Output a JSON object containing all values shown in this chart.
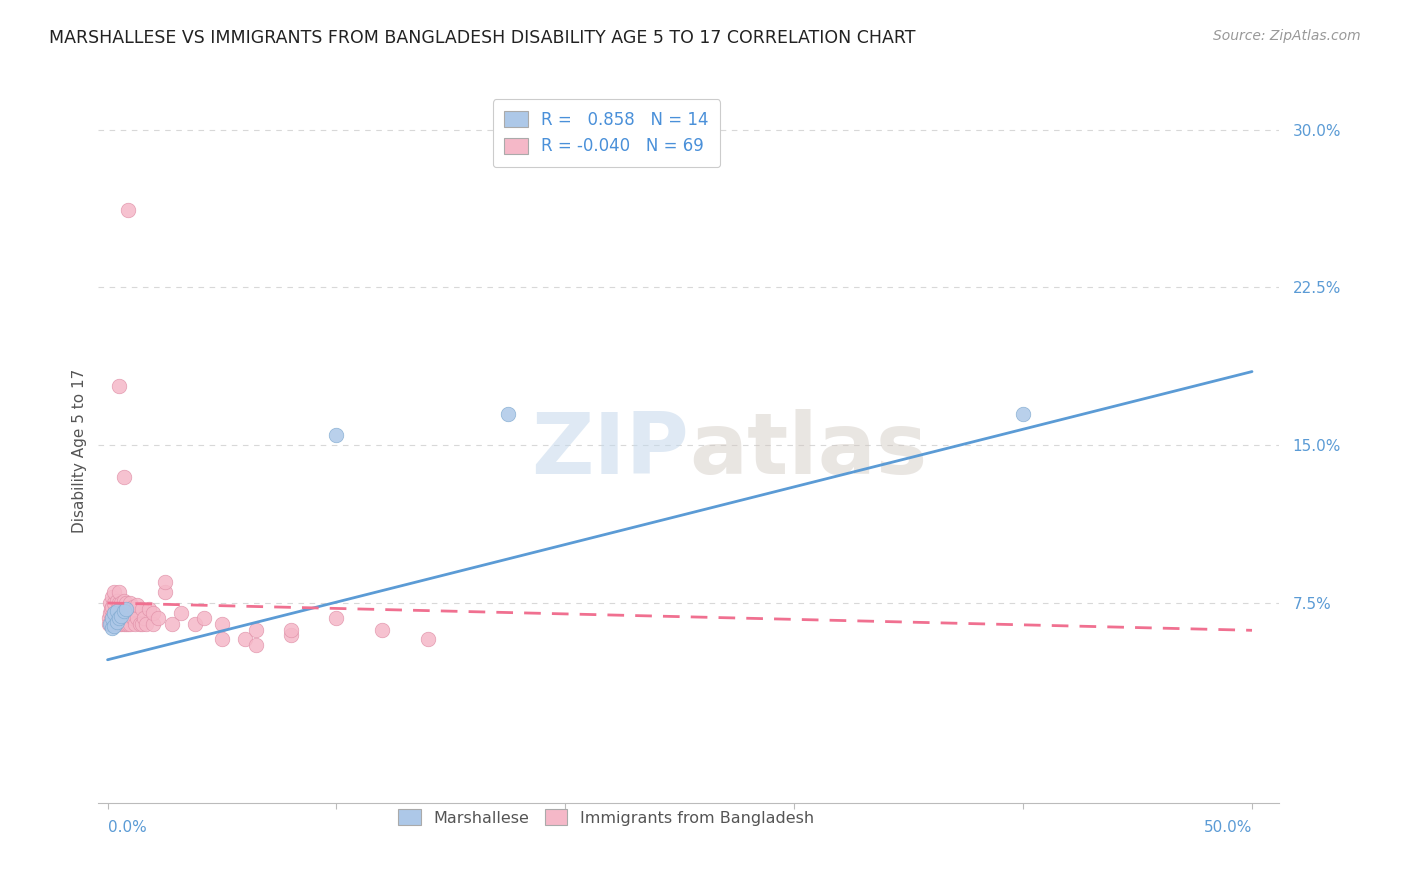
{
  "title": "MARSHALLESE VS IMMIGRANTS FROM BANGLADESH DISABILITY AGE 5 TO 17 CORRELATION CHART",
  "source": "Source: ZipAtlas.com",
  "ylabel": "Disability Age 5 to 17",
  "marshallese_color": "#adc8e8",
  "bangladesh_color": "#f5b8c8",
  "marshallese_line_color": "#5b9bd5",
  "bangladesh_line_color": "#f07090",
  "grid_color": "#d8d8d8",
  "background_color": "#ffffff",
  "watermark": "ZIPatlas",
  "xlim": [
    0.0,
    0.5
  ],
  "ylim": [
    0.0,
    0.315
  ],
  "ytick_vals": [
    0.075,
    0.15,
    0.225,
    0.3
  ],
  "ytick_labels": [
    "7.5%",
    "15.0%",
    "22.5%",
    "30.0%"
  ],
  "marsh_line_x0": 0.0,
  "marsh_line_y0": 0.048,
  "marsh_line_x1": 0.5,
  "marsh_line_y1": 0.185,
  "bang_line_x0": 0.0,
  "bang_line_y0": 0.075,
  "bang_line_x1": 0.5,
  "bang_line_y1": 0.062,
  "marsh_scatter_x": [
    0.001,
    0.002,
    0.002,
    0.003,
    0.003,
    0.004,
    0.004,
    0.005,
    0.006,
    0.007,
    0.008,
    0.1,
    0.175,
    0.4
  ],
  "marsh_scatter_y": [
    0.065,
    0.063,
    0.068,
    0.064,
    0.07,
    0.066,
    0.071,
    0.068,
    0.069,
    0.071,
    0.072,
    0.155,
    0.165,
    0.165
  ],
  "bang_scatter_x": [
    0.0005,
    0.0008,
    0.001,
    0.001,
    0.0015,
    0.0015,
    0.002,
    0.002,
    0.002,
    0.0025,
    0.003,
    0.003,
    0.003,
    0.0035,
    0.004,
    0.004,
    0.004,
    0.005,
    0.005,
    0.005,
    0.005,
    0.006,
    0.006,
    0.006,
    0.007,
    0.007,
    0.007,
    0.008,
    0.008,
    0.008,
    0.009,
    0.009,
    0.01,
    0.01,
    0.01,
    0.011,
    0.011,
    0.012,
    0.012,
    0.013,
    0.013,
    0.014,
    0.015,
    0.015,
    0.016,
    0.017,
    0.018,
    0.02,
    0.02,
    0.022,
    0.025,
    0.028,
    0.032,
    0.038,
    0.042,
    0.05,
    0.06,
    0.065,
    0.08,
    0.1,
    0.12,
    0.14,
    0.009,
    0.005,
    0.007,
    0.025,
    0.05,
    0.065,
    0.08
  ],
  "bang_scatter_y": [
    0.068,
    0.065,
    0.07,
    0.075,
    0.065,
    0.072,
    0.068,
    0.073,
    0.078,
    0.065,
    0.07,
    0.075,
    0.08,
    0.068,
    0.065,
    0.071,
    0.076,
    0.065,
    0.07,
    0.075,
    0.08,
    0.065,
    0.07,
    0.075,
    0.065,
    0.07,
    0.076,
    0.065,
    0.07,
    0.075,
    0.065,
    0.071,
    0.065,
    0.07,
    0.075,
    0.068,
    0.073,
    0.065,
    0.072,
    0.068,
    0.074,
    0.065,
    0.065,
    0.072,
    0.068,
    0.065,
    0.072,
    0.065,
    0.07,
    0.068,
    0.08,
    0.065,
    0.07,
    0.065,
    0.068,
    0.065,
    0.058,
    0.062,
    0.06,
    0.068,
    0.062,
    0.058,
    0.262,
    0.178,
    0.135,
    0.085,
    0.058,
    0.055,
    0.062
  ],
  "legend_r_color": "#4a90d9",
  "legend_n_color": "#333333",
  "tick_color": "#5b9bd5",
  "title_fontsize": 12.5,
  "source_fontsize": 10,
  "axis_fontsize": 11
}
